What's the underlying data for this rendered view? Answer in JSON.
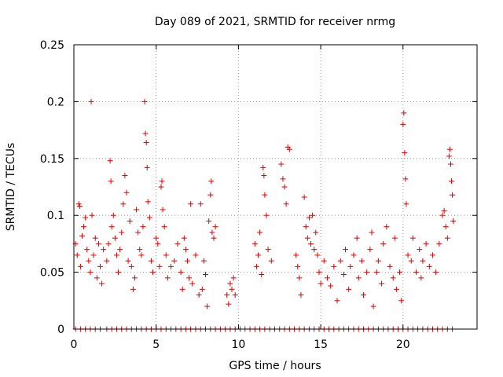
{
  "chart_data": {
    "type": "scatter",
    "title": "Day 089 of 2021, SRMTID for receiver nrmg",
    "xlabel": "GPS time / hours",
    "ylabel": "SRMTID / TECUs",
    "xlim": [
      0,
      24.5
    ],
    "ylim": [
      0,
      0.25
    ],
    "xticks": [
      0,
      5,
      10,
      15,
      20
    ],
    "xtick_labels": [
      "0",
      "5",
      "10",
      "15",
      "20"
    ],
    "yticks": [
      0,
      0.05,
      0.1,
      0.15,
      0.2,
      0.25
    ],
    "ytick_labels": [
      "0",
      "0.05",
      "0.1",
      "0.15",
      "0.2",
      "0.25"
    ],
    "grid": true,
    "marker": "plus",
    "series": [
      {
        "name": "SRMTID",
        "color": "#dd0000",
        "points": [
          [
            0.1,
            0.075
          ],
          [
            0.2,
            0.065
          ],
          [
            0.3,
            0.11
          ],
          [
            0.35,
            0.108
          ],
          [
            0.4,
            0.055
          ],
          [
            0.5,
            0.082
          ],
          [
            0.6,
            0.09
          ],
          [
            0.7,
            0.098
          ],
          [
            0.8,
            0.07
          ],
          [
            0.9,
            0.06
          ],
          [
            1.0,
            0.05
          ],
          [
            1.05,
            0.2
          ],
          [
            1.1,
            0.1
          ],
          [
            1.2,
            0.065
          ],
          [
            1.3,
            0.08
          ],
          [
            1.4,
            0.045
          ],
          [
            1.5,
            0.075
          ],
          [
            1.6,
            0.055
          ],
          [
            1.7,
            0.04
          ],
          [
            1.8,
            0.07
          ],
          [
            2.0,
            0.06
          ],
          [
            2.1,
            0.075
          ],
          [
            2.2,
            0.148
          ],
          [
            2.25,
            0.13
          ],
          [
            2.3,
            0.09
          ],
          [
            2.4,
            0.1
          ],
          [
            2.5,
            0.08
          ],
          [
            2.6,
            0.065
          ],
          [
            2.7,
            0.05
          ],
          [
            2.8,
            0.07
          ],
          [
            2.9,
            0.085
          ],
          [
            3.0,
            0.11
          ],
          [
            3.1,
            0.135
          ],
          [
            3.2,
            0.12
          ],
          [
            3.3,
            0.06
          ],
          [
            3.4,
            0.095
          ],
          [
            3.5,
            0.055
          ],
          [
            3.6,
            0.035
          ],
          [
            3.7,
            0.045
          ],
          [
            3.8,
            0.105
          ],
          [
            3.9,
            0.085
          ],
          [
            4.0,
            0.07
          ],
          [
            4.1,
            0.065
          ],
          [
            4.2,
            0.09
          ],
          [
            4.3,
            0.2
          ],
          [
            4.35,
            0.172
          ],
          [
            4.4,
            0.164
          ],
          [
            4.45,
            0.142
          ],
          [
            4.5,
            0.112
          ],
          [
            4.6,
            0.098
          ],
          [
            4.7,
            0.06
          ],
          [
            4.8,
            0.05
          ],
          [
            5.0,
            0.08
          ],
          [
            5.1,
            0.075
          ],
          [
            5.2,
            0.055
          ],
          [
            5.3,
            0.125
          ],
          [
            5.35,
            0.13
          ],
          [
            5.4,
            0.105
          ],
          [
            5.5,
            0.09
          ],
          [
            5.6,
            0.065
          ],
          [
            5.7,
            0.045
          ],
          [
            5.9,
            0.055
          ],
          [
            6.1,
            0.06
          ],
          [
            6.3,
            0.075
          ],
          [
            6.5,
            0.05
          ],
          [
            6.6,
            0.035
          ],
          [
            6.7,
            0.08
          ],
          [
            6.8,
            0.07
          ],
          [
            6.9,
            0.06
          ],
          [
            7.0,
            0.045
          ],
          [
            7.1,
            0.11
          ],
          [
            7.2,
            0.04
          ],
          [
            7.4,
            0.065
          ],
          [
            7.6,
            0.03
          ],
          [
            7.7,
            0.11
          ],
          [
            7.8,
            0.035
          ],
          [
            7.9,
            0.06
          ],
          [
            8.0,
            0.048
          ],
          [
            8.1,
            0.02
          ],
          [
            8.2,
            0.095
          ],
          [
            8.3,
            0.118
          ],
          [
            8.35,
            0.13
          ],
          [
            8.4,
            0.085
          ],
          [
            8.5,
            0.08
          ],
          [
            8.6,
            0.09
          ],
          [
            9.3,
            0.03
          ],
          [
            9.4,
            0.022
          ],
          [
            9.5,
            0.04
          ],
          [
            9.6,
            0.035
          ],
          [
            9.7,
            0.045
          ],
          [
            9.8,
            0.03
          ],
          [
            11.0,
            0.075
          ],
          [
            11.1,
            0.055
          ],
          [
            11.2,
            0.065
          ],
          [
            11.3,
            0.085
          ],
          [
            11.4,
            0.048
          ],
          [
            11.5,
            0.142
          ],
          [
            11.55,
            0.135
          ],
          [
            11.6,
            0.118
          ],
          [
            11.7,
            0.1
          ],
          [
            11.8,
            0.07
          ],
          [
            12.0,
            0.06
          ],
          [
            12.6,
            0.145
          ],
          [
            12.7,
            0.132
          ],
          [
            12.8,
            0.125
          ],
          [
            12.9,
            0.11
          ],
          [
            13.0,
            0.16
          ],
          [
            13.1,
            0.158
          ],
          [
            13.5,
            0.065
          ],
          [
            13.6,
            0.055
          ],
          [
            13.7,
            0.045
          ],
          [
            13.8,
            0.03
          ],
          [
            14.0,
            0.116
          ],
          [
            14.1,
            0.09
          ],
          [
            14.2,
            0.08
          ],
          [
            14.3,
            0.098
          ],
          [
            14.4,
            0.075
          ],
          [
            14.5,
            0.1
          ],
          [
            14.6,
            0.07
          ],
          [
            14.7,
            0.085
          ],
          [
            14.8,
            0.065
          ],
          [
            14.9,
            0.05
          ],
          [
            15.0,
            0.04
          ],
          [
            15.2,
            0.06
          ],
          [
            15.4,
            0.045
          ],
          [
            15.6,
            0.038
          ],
          [
            15.8,
            0.055
          ],
          [
            16.0,
            0.025
          ],
          [
            16.2,
            0.06
          ],
          [
            16.4,
            0.048
          ],
          [
            16.5,
            0.07
          ],
          [
            16.7,
            0.035
          ],
          [
            16.8,
            0.055
          ],
          [
            17.0,
            0.065
          ],
          [
            17.2,
            0.08
          ],
          [
            17.3,
            0.045
          ],
          [
            17.5,
            0.06
          ],
          [
            17.6,
            0.03
          ],
          [
            17.8,
            0.05
          ],
          [
            18.0,
            0.07
          ],
          [
            18.1,
            0.085
          ],
          [
            18.2,
            0.02
          ],
          [
            18.4,
            0.05
          ],
          [
            18.5,
            0.06
          ],
          [
            18.7,
            0.04
          ],
          [
            18.8,
            0.075
          ],
          [
            19.0,
            0.09
          ],
          [
            19.2,
            0.055
          ],
          [
            19.4,
            0.045
          ],
          [
            19.5,
            0.08
          ],
          [
            19.6,
            0.035
          ],
          [
            19.8,
            0.05
          ],
          [
            19.9,
            0.025
          ],
          [
            20.0,
            0.18
          ],
          [
            20.05,
            0.19
          ],
          [
            20.1,
            0.155
          ],
          [
            20.15,
            0.132
          ],
          [
            20.2,
            0.11
          ],
          [
            20.3,
            0.065
          ],
          [
            20.5,
            0.06
          ],
          [
            20.6,
            0.08
          ],
          [
            20.8,
            0.05
          ],
          [
            21.0,
            0.07
          ],
          [
            21.1,
            0.045
          ],
          [
            21.2,
            0.06
          ],
          [
            21.4,
            0.075
          ],
          [
            21.6,
            0.055
          ],
          [
            21.8,
            0.065
          ],
          [
            22.0,
            0.05
          ],
          [
            22.2,
            0.075
          ],
          [
            22.4,
            0.1
          ],
          [
            22.5,
            0.104
          ],
          [
            22.6,
            0.09
          ],
          [
            22.7,
            0.08
          ],
          [
            22.8,
            0.152
          ],
          [
            22.85,
            0.158
          ],
          [
            22.9,
            0.145
          ],
          [
            22.95,
            0.13
          ],
          [
            23.0,
            0.118
          ],
          [
            23.05,
            0.095
          ]
        ],
        "zero_points_x": [
          0.1,
          0.4,
          0.7,
          1.0,
          1.3,
          1.6,
          2.0,
          2.3,
          2.6,
          2.9,
          3.2,
          3.5,
          3.8,
          4.1,
          4.4,
          4.7,
          5.0,
          5.3,
          5.6,
          5.9,
          6.2,
          6.5,
          6.8,
          7.1,
          7.4,
          7.7,
          8.0,
          8.3,
          8.6,
          8.9,
          9.2,
          9.5,
          9.8,
          10.1,
          10.4,
          10.7,
          11.0,
          11.3,
          11.6,
          11.9,
          12.2,
          12.5,
          12.8,
          13.1,
          13.4,
          13.7,
          14.0,
          14.3,
          14.6,
          14.9,
          15.2,
          15.5,
          15.8,
          16.1,
          16.4,
          16.7,
          17.0,
          17.3,
          17.6,
          17.9,
          18.2,
          18.5,
          18.8,
          19.1,
          19.4,
          19.7,
          20.0,
          20.3,
          20.6,
          20.9,
          21.2,
          21.5,
          21.8,
          22.1,
          22.4,
          22.7,
          23.0
        ]
      }
    ]
  }
}
